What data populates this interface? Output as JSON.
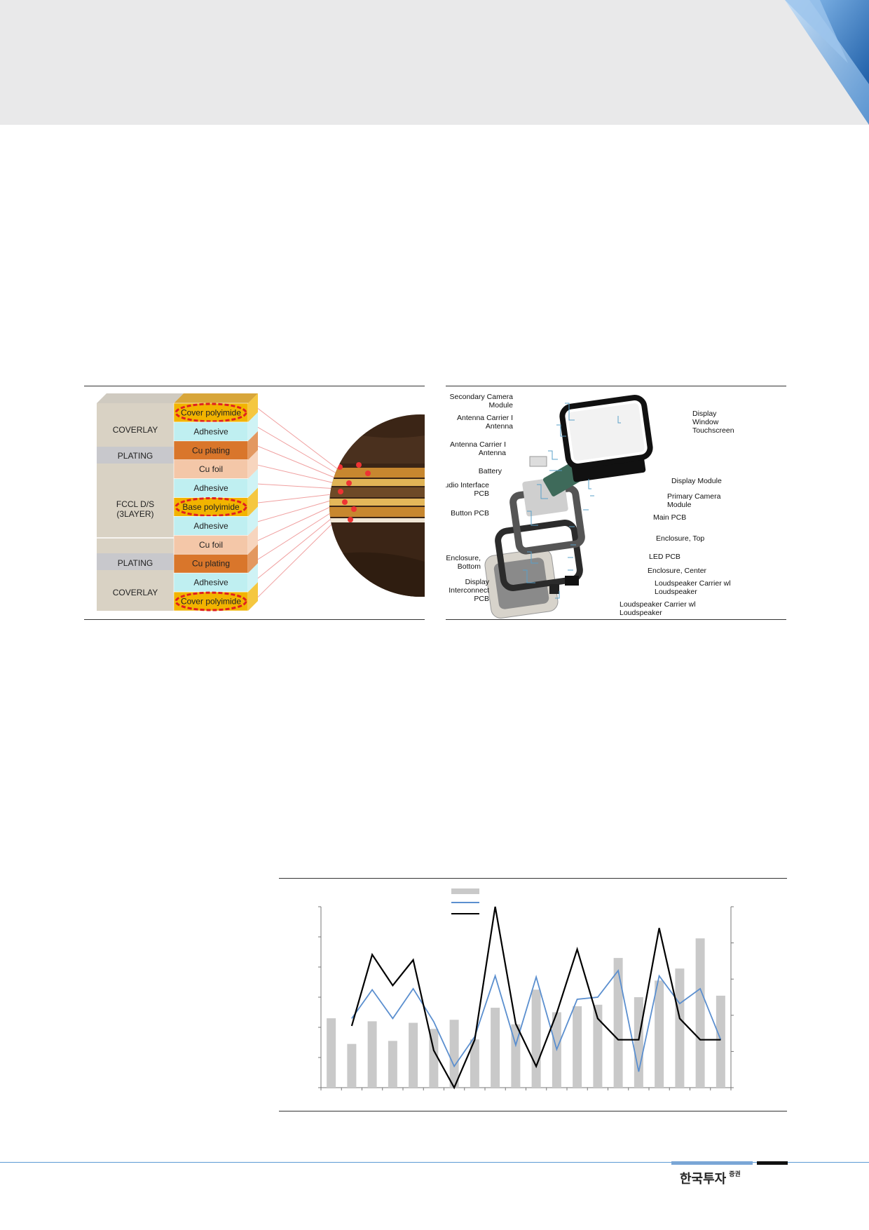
{
  "header": {
    "brand_color": "#1f5fa8"
  },
  "fpcb_figure": {
    "left_labels": [
      "COVERLAY",
      "PLATING",
      "FCCL D/S",
      "(3LAYER)",
      "PLATING",
      "COVERLAY"
    ],
    "layers": [
      {
        "label": "Cover polyimide",
        "color": "#f2b400",
        "highlight": true
      },
      {
        "label": "Adhesive",
        "color": "#bfeff1",
        "highlight": false
      },
      {
        "label": "Cu plating",
        "color": "#d9762b",
        "highlight": false
      },
      {
        "label": "Cu foil",
        "color": "#f4c7a8",
        "highlight": false
      },
      {
        "label": "Adhesive",
        "color": "#bfeff1",
        "highlight": false
      },
      {
        "label": "Base polyimide",
        "color": "#f2b400",
        "highlight": true
      },
      {
        "label": "Adhesive",
        "color": "#bfeff1",
        "highlight": false
      },
      {
        "label": "Cu foil",
        "color": "#f4c7a8",
        "highlight": false
      },
      {
        "label": "Cu plating",
        "color": "#d9762b",
        "highlight": false
      },
      {
        "label": "Adhesive",
        "color": "#bfeff1",
        "highlight": false
      },
      {
        "label": "Cover polyimide",
        "color": "#f2b400",
        "highlight": true
      }
    ]
  },
  "teardown_figure": {
    "labels_left": [
      "Secondary Camera",
      "Module",
      "Antenna Carrier I",
      "Antenna",
      "Antenna Carrier I",
      "Antenna",
      "Battery",
      "Audio Interface",
      "PCB",
      "Button PCB",
      "Enclosure,",
      "Bottom",
      "Display",
      "Interconnect",
      "PCB"
    ],
    "labels_right": [
      "Display",
      "Window",
      "Touchscreen",
      "Display Module",
      "Primary Camera",
      "Module",
      "Main PCB",
      "Enclosure, Top",
      "LED PCB",
      "Enclosure, Center",
      "Loudspeaker Carrier wl",
      "Loudspeaker",
      "Loudspeaker Carrier wl",
      "Loudspeaker"
    ]
  },
  "chart_data": {
    "type": "bar",
    "grid": false,
    "legend_position": "top",
    "series": [
      {
        "kind": "bar",
        "color": "#c9c9c9",
        "axis": "left",
        "values": [
          46,
          29,
          44,
          31,
          43,
          39,
          45,
          32,
          53,
          42,
          65,
          50,
          54,
          55,
          86,
          60,
          71,
          79,
          99,
          61
        ]
      },
      {
        "kind": "line",
        "color": "#5b8fcf",
        "axis": "right",
        "values": [
          null,
          15,
          42,
          15,
          43,
          12,
          -30,
          -2,
          55,
          -10,
          54,
          -14,
          33,
          35,
          60,
          -35,
          55,
          29,
          43,
          -5
        ]
      },
      {
        "kind": "line",
        "color": "#000000",
        "axis": "right",
        "values": [
          null,
          8,
          75,
          46,
          70,
          -15,
          -50,
          -5,
          120,
          10,
          -30,
          20,
          80,
          15,
          -5,
          -5,
          100,
          15,
          -5,
          -5
        ]
      }
    ],
    "left_ylim": [
      0,
      120
    ],
    "right_ylim": [
      -50,
      120
    ]
  },
  "footer": {
    "brand": "한국투자",
    "brand_suffix": "증권"
  }
}
